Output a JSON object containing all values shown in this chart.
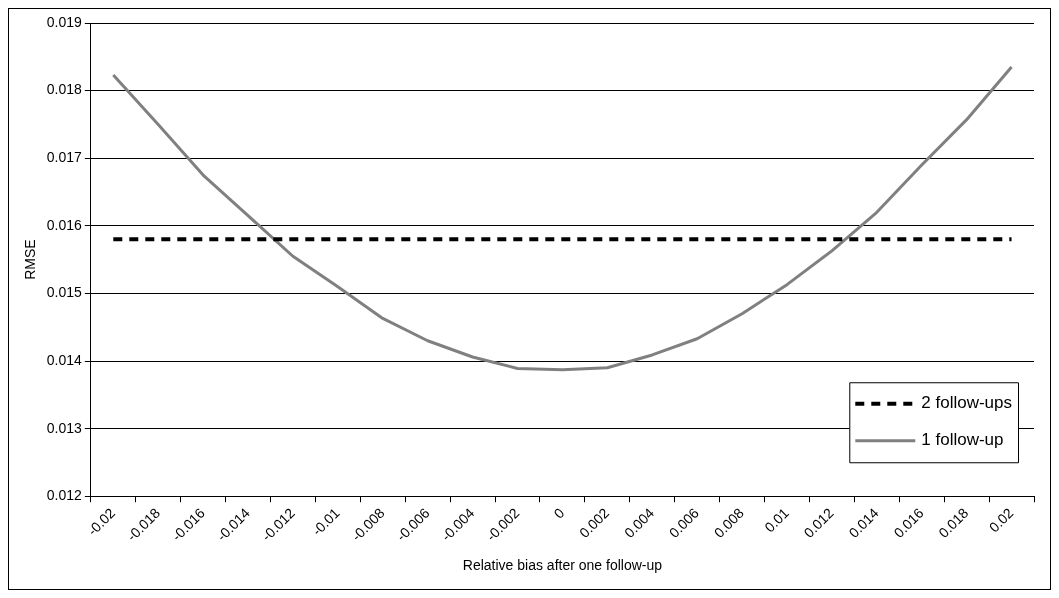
{
  "chart_data": {
    "type": "line",
    "xlabel": "Relative bias after one follow-up",
    "ylabel": "RMSE",
    "categories": [
      "-0.02",
      "-0.018",
      "-0.016",
      "-0.014",
      "-0.012",
      "-0.01",
      "-0.008",
      "-0.006",
      "-0.004",
      "-0.002",
      "0",
      "0.002",
      "0.004",
      "0.006",
      "0.008",
      "0.01",
      "0.012",
      "0.014",
      "0.016",
      "0.018",
      "0.02"
    ],
    "series": [
      {
        "name": "2 follow-ups",
        "color": "#000000",
        "line_style": "dashed",
        "values": [
          0.0158,
          0.0158,
          0.0158,
          0.0158,
          0.0158,
          0.0158,
          0.0158,
          0.0158,
          0.0158,
          0.0158,
          0.0158,
          0.0158,
          0.0158,
          0.0158,
          0.0158,
          0.0158,
          0.0158,
          0.0158,
          0.0158,
          0.0158,
          0.0158
        ]
      },
      {
        "name": "1 follow-up",
        "color": "#808080",
        "line_style": "solid",
        "values": [
          0.01823,
          0.0175,
          0.01675,
          0.01615,
          0.01555,
          0.0151,
          0.01463,
          0.0143,
          0.01406,
          0.01389,
          0.01387,
          0.0139,
          0.01409,
          0.01433,
          0.0147,
          0.01513,
          0.01563,
          0.0162,
          0.0169,
          0.01757,
          0.01835
        ]
      }
    ],
    "ylim": [
      0.012,
      0.019
    ],
    "yticks": [
      0.012,
      0.013,
      0.014,
      0.015,
      0.016,
      0.017,
      0.018,
      0.019
    ],
    "grid": "y",
    "legend": "bottom right",
    "marker": "none"
  }
}
